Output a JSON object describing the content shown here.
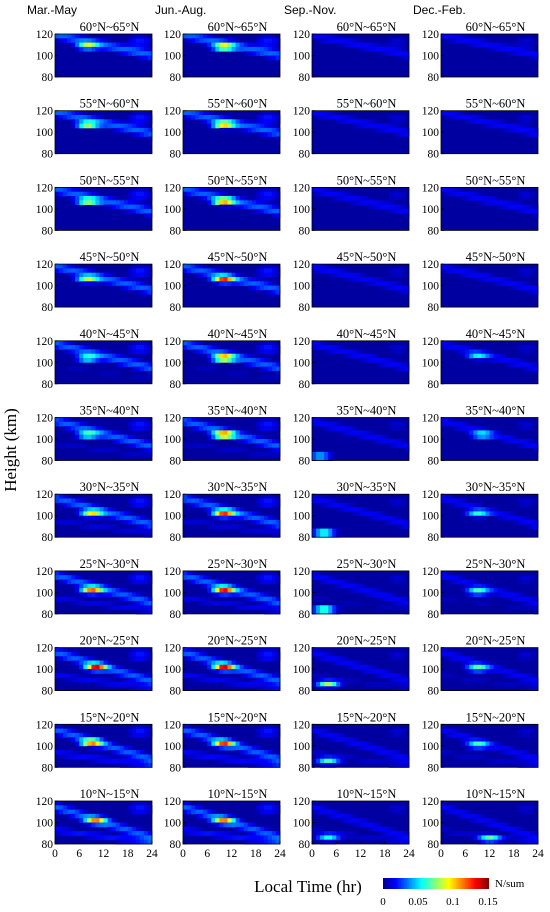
{
  "chart_data": {
    "type": "heatmap",
    "columns": [
      "Mar.-May",
      "Jun.-Aug.",
      "Sep.-Nov.",
      "Dec.-Feb."
    ],
    "rows": [
      "60°N~65°N",
      "55°N~60°N",
      "50°N~55°N",
      "45°N~50°N",
      "40°N~45°N",
      "35°N~40°N",
      "30°N~35°N",
      "25°N~30°N",
      "20°N~25°N",
      "15°N~20°N",
      "10°N~15°N"
    ],
    "xlabel": "Local Time (hr)",
    "ylabel": "Height (km)",
    "xlim": [
      0,
      24
    ],
    "xticks": [
      "0",
      "6",
      "12",
      "18",
      "24"
    ],
    "ylim": [
      80,
      120
    ],
    "yticks": [
      "120",
      "100",
      "80"
    ],
    "colorbar": {
      "label": "N/sum",
      "range": [
        0,
        0.15
      ],
      "ticks": [
        "0",
        "0.05",
        "0.1",
        "0.15"
      ],
      "colormap": "jet"
    },
    "description": "Occurrence ratio (N/sum) versus local time and height for four seasons and eleven latitude bands.",
    "peaks": [
      [
        [
          8,
          109,
          0.1
        ],
        [
          10,
          108,
          0.12
        ],
        [
          0,
          0,
          0
        ],
        [
          0,
          0,
          0
        ]
      ],
      [
        [
          8,
          107,
          0.11
        ],
        [
          10,
          107,
          0.13
        ],
        [
          0,
          0,
          0
        ],
        [
          0,
          0,
          0
        ]
      ],
      [
        [
          8,
          107,
          0.1
        ],
        [
          10,
          107,
          0.13
        ],
        [
          0,
          0,
          0
        ],
        [
          0,
          0,
          0
        ]
      ],
      [
        [
          8,
          106,
          0.1
        ],
        [
          10,
          106,
          0.14
        ],
        [
          0,
          0,
          0
        ],
        [
          0,
          0,
          0
        ]
      ],
      [
        [
          8,
          104,
          0.09
        ],
        [
          10,
          104,
          0.15
        ],
        [
          0,
          0,
          0
        ],
        [
          9,
          106,
          0.06
        ]
      ],
      [
        [
          8,
          104,
          0.09
        ],
        [
          10,
          104,
          0.15
        ],
        [
          2,
          84,
          0.08
        ],
        [
          10,
          104,
          0.07
        ]
      ],
      [
        [
          9,
          102,
          0.12
        ],
        [
          10,
          102,
          0.15
        ],
        [
          3,
          84,
          0.11
        ],
        [
          9,
          102,
          0.08
        ]
      ],
      [
        [
          9,
          102,
          0.14
        ],
        [
          10,
          102,
          0.15
        ],
        [
          3,
          84,
          0.12
        ],
        [
          9,
          101,
          0.09
        ]
      ],
      [
        [
          10,
          102,
          0.15
        ],
        [
          10,
          102,
          0.15
        ],
        [
          4,
          86,
          0.11
        ],
        [
          9,
          101,
          0.09
        ]
      ],
      [
        [
          9,
          103,
          0.13
        ],
        [
          10,
          102,
          0.13
        ],
        [
          4,
          86,
          0.09
        ],
        [
          9,
          101,
          0.08
        ]
      ],
      [
        [
          10,
          102,
          0.11
        ],
        [
          10,
          102,
          0.11
        ],
        [
          4,
          86,
          0.08
        ],
        [
          12,
          85,
          0.09
        ]
      ]
    ]
  }
}
